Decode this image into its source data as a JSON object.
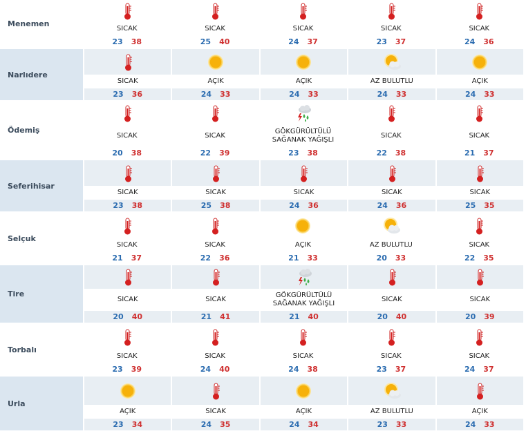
{
  "rows": [
    {
      "city": "Menemen",
      "days": [
        {
          "condition": "SICAK",
          "low": 23,
          "high": 38
        },
        {
          "condition": "SICAK",
          "low": 25,
          "high": 40
        },
        {
          "condition": "SICAK",
          "low": 24,
          "high": 37
        },
        {
          "condition": "SICAK",
          "low": 23,
          "high": 37
        },
        {
          "condition": "SICAK",
          "low": 24,
          "high": 36
        }
      ]
    },
    {
      "city": "Narlıdere",
      "days": [
        {
          "condition": "SICAK",
          "low": 23,
          "high": 36
        },
        {
          "condition": "AÇIK",
          "low": 24,
          "high": 33
        },
        {
          "condition": "AÇIK",
          "low": 24,
          "high": 33
        },
        {
          "condition": "AZ BULUTLU",
          "low": 24,
          "high": 33
        },
        {
          "condition": "AÇIK",
          "low": 24,
          "high": 33
        }
      ]
    },
    {
      "city": "Ödemiş",
      "days": [
        {
          "condition": "SICAK",
          "low": 20,
          "high": 38
        },
        {
          "condition": "SICAK",
          "low": 22,
          "high": 39
        },
        {
          "condition": "GÖKGÜRÜLTÜLÜ SAĞANAK YAĞIŞLI",
          "low": 23,
          "high": 38
        },
        {
          "condition": "SICAK",
          "low": 22,
          "high": 38
        },
        {
          "condition": "SICAK",
          "low": 21,
          "high": 37
        }
      ]
    },
    {
      "city": "Seferihisar",
      "days": [
        {
          "condition": "SICAK",
          "low": 23,
          "high": 38
        },
        {
          "condition": "SICAK",
          "low": 25,
          "high": 38
        },
        {
          "condition": "SICAK",
          "low": 24,
          "high": 36
        },
        {
          "condition": "SICAK",
          "low": 24,
          "high": 36
        },
        {
          "condition": "SICAK",
          "low": 25,
          "high": 35
        }
      ]
    },
    {
      "city": "Selçuk",
      "days": [
        {
          "condition": "SICAK",
          "low": 21,
          "high": 37
        },
        {
          "condition": "SICAK",
          "low": 22,
          "high": 36
        },
        {
          "condition": "AÇIK",
          "low": 21,
          "high": 33
        },
        {
          "condition": "AZ BULUTLU",
          "low": 20,
          "high": 33
        },
        {
          "condition": "SICAK",
          "low": 22,
          "high": 35
        }
      ]
    },
    {
      "city": "Tire",
      "days": [
        {
          "condition": "SICAK",
          "low": 20,
          "high": 40
        },
        {
          "condition": "SICAK",
          "low": 21,
          "high": 41
        },
        {
          "condition": "GÖKGÜRÜLTÜLÜ SAĞANAK YAĞIŞLI",
          "low": 21,
          "high": 40
        },
        {
          "condition": "SICAK",
          "low": 20,
          "high": 40
        },
        {
          "condition": "SICAK",
          "low": 20,
          "high": 39
        }
      ]
    },
    {
      "city": "Torbalı",
      "days": [
        {
          "condition": "SICAK",
          "low": 23,
          "high": 39
        },
        {
          "condition": "SICAK",
          "low": 24,
          "high": 40
        },
        {
          "condition": "SICAK",
          "low": 24,
          "high": 38
        },
        {
          "condition": "SICAK",
          "low": 23,
          "high": 37
        },
        {
          "condition": "SICAK",
          "low": 24,
          "high": 37
        }
      ]
    },
    {
      "city": "Urla",
      "days": [
        {
          "condition": "AÇIK",
          "low": 23,
          "high": 34
        },
        {
          "condition": "SICAK",
          "low": 24,
          "high": 35
        },
        {
          "condition": "AÇIK",
          "low": 24,
          "high": 34
        },
        {
          "condition": "AZ BULUTLU",
          "low": 23,
          "high": 33
        },
        {
          "condition": "AÇIK",
          "low": 24,
          "high": 33
        }
      ]
    }
  ]
}
